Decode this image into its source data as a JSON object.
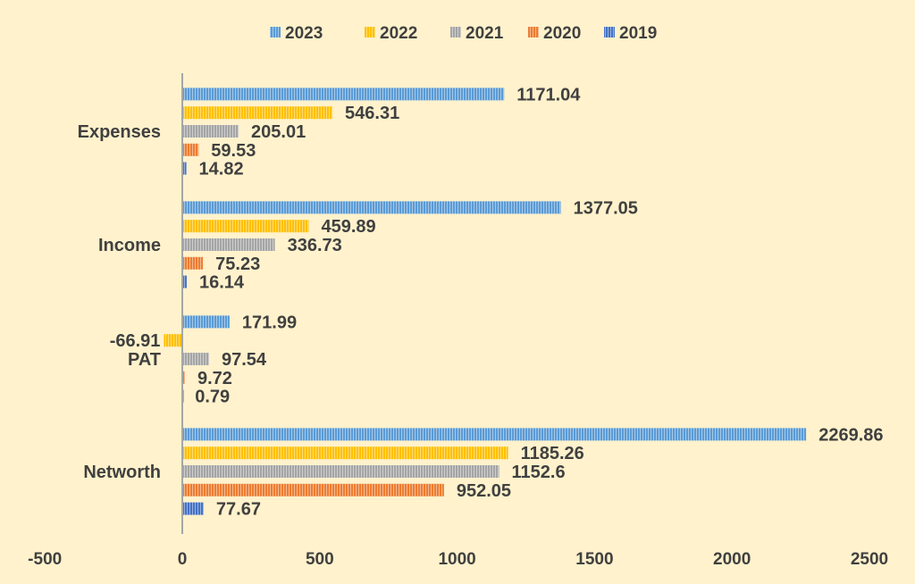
{
  "chart_data": {
    "type": "bar",
    "orientation": "horizontal",
    "title": "",
    "xlabel": "",
    "ylabel": "",
    "categories": [
      "Expenses",
      "Income",
      "PAT",
      "Networth"
    ],
    "xlim": [
      -500,
      2500
    ],
    "xticks": [
      -500,
      0,
      500,
      1000,
      1500,
      2000,
      2500
    ],
    "grid": false,
    "legend_position": "top",
    "series": [
      {
        "name": "2023",
        "color": "#5b9bd5",
        "values": [
          1171.04,
          1377.05,
          171.99,
          2269.86
        ]
      },
      {
        "name": "2022",
        "color": "#ffc000",
        "values": [
          546.31,
          459.89,
          -66.91,
          1185.26
        ]
      },
      {
        "name": "2021",
        "color": "#a5a5a5",
        "values": [
          205.01,
          336.73,
          97.54,
          1152.6
        ]
      },
      {
        "name": "2020",
        "color": "#ed7d31",
        "values": [
          59.53,
          75.23,
          9.72,
          952.05
        ]
      },
      {
        "name": "2019",
        "color": "#4472c4",
        "values": [
          14.82,
          16.14,
          0.79,
          77.67
        ]
      }
    ]
  }
}
